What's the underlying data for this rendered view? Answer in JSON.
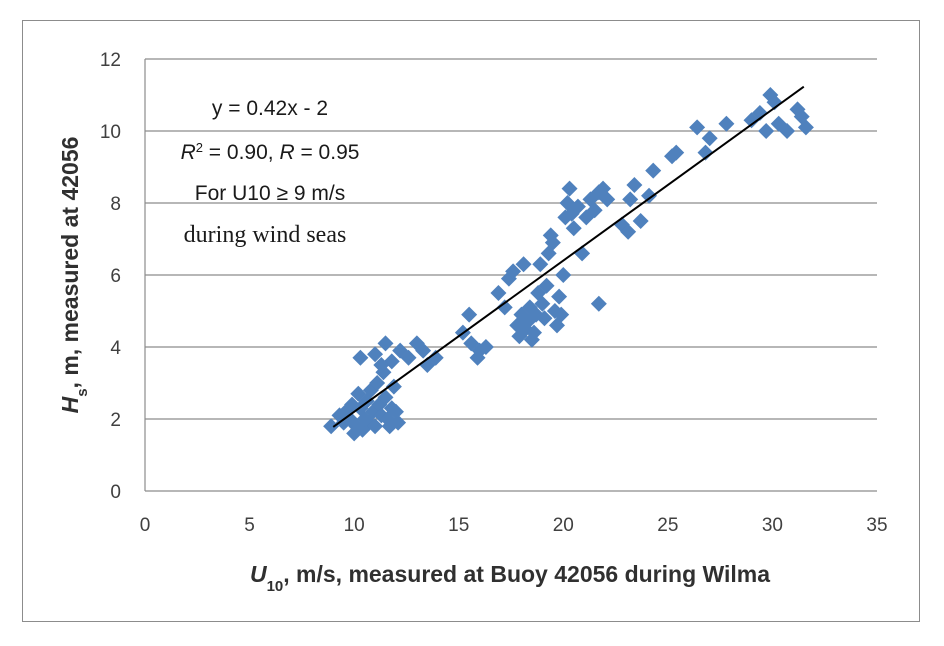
{
  "chart_data": {
    "type": "scatter",
    "xlabel": {
      "var": "U",
      "sub": "10",
      "rest": ", m/s, measured at Buoy 42056 during Wilma"
    },
    "ylabel": {
      "var": "H",
      "sub": "s",
      "rest": ", m, measured at 42056"
    },
    "xlim": [
      0,
      35
    ],
    "ylim": [
      0,
      12
    ],
    "xticks": [
      "0",
      "5",
      "10",
      "15",
      "20",
      "25",
      "30",
      "35"
    ],
    "yticks": [
      "0",
      "2",
      "4",
      "6",
      "8",
      "10",
      "12"
    ],
    "grid": "horizontal",
    "marker_color": "#4f81bd",
    "line_color": "#000000",
    "trendline": {
      "slope": 0.42,
      "intercept": -2,
      "x_range": [
        9,
        31.5
      ]
    },
    "annotations": {
      "equation": "y = 0.42x - 2",
      "r2_label": "R",
      "r2_sup": "2",
      "r2_rest": " = 0.90, ",
      "r_label": "R",
      "r_rest": " = 0.95",
      "condition": "For U10 ≥ 9 m/s",
      "regime": "during wind seas"
    },
    "series": [
      {
        "points": [
          [
            8.9,
            1.8
          ],
          [
            9.3,
            2.1
          ],
          [
            9.5,
            1.9
          ],
          [
            9.6,
            2.2
          ],
          [
            9.8,
            2.0
          ],
          [
            9.9,
            2.4
          ],
          [
            10.0,
            1.6
          ],
          [
            10.1,
            1.8
          ],
          [
            10.2,
            2.7
          ],
          [
            10.3,
            2.3
          ],
          [
            10.4,
            1.7
          ],
          [
            10.5,
            2.0
          ],
          [
            10.6,
            2.5
          ],
          [
            10.7,
            1.9
          ],
          [
            10.8,
            2.8
          ],
          [
            10.9,
            2.2
          ],
          [
            11.0,
            1.8
          ],
          [
            11.1,
            3.0
          ],
          [
            11.2,
            2.4
          ],
          [
            11.3,
            2.1
          ],
          [
            11.4,
            3.3
          ],
          [
            11.5,
            2.6
          ],
          [
            11.6,
            2.0
          ],
          [
            11.7,
            1.8
          ],
          [
            11.8,
            2.3
          ],
          [
            11.9,
            2.9
          ],
          [
            12.0,
            2.2
          ],
          [
            12.1,
            1.9
          ],
          [
            10.3,
            3.7
          ],
          [
            11.0,
            3.8
          ],
          [
            11.5,
            4.1
          ],
          [
            11.8,
            3.6
          ],
          [
            11.3,
            3.5
          ],
          [
            12.2,
            3.9
          ],
          [
            12.6,
            3.7
          ],
          [
            13.0,
            4.1
          ],
          [
            13.3,
            3.9
          ],
          [
            13.5,
            3.5
          ],
          [
            13.9,
            3.7
          ],
          [
            15.2,
            4.4
          ],
          [
            15.5,
            4.9
          ],
          [
            15.6,
            4.1
          ],
          [
            15.9,
            3.7
          ],
          [
            16.0,
            3.9
          ],
          [
            16.3,
            4.0
          ],
          [
            16.9,
            5.5
          ],
          [
            17.2,
            5.1
          ],
          [
            17.4,
            5.9
          ],
          [
            17.6,
            6.1
          ],
          [
            17.8,
            4.6
          ],
          [
            17.9,
            4.3
          ],
          [
            18.0,
            4.9
          ],
          [
            18.1,
            6.3
          ],
          [
            18.2,
            4.5
          ],
          [
            18.3,
            4.7
          ],
          [
            18.4,
            5.1
          ],
          [
            18.5,
            4.2
          ],
          [
            18.6,
            4.4
          ],
          [
            18.7,
            4.9
          ],
          [
            18.8,
            5.5
          ],
          [
            18.9,
            6.3
          ],
          [
            19.0,
            5.2
          ],
          [
            19.1,
            4.8
          ],
          [
            19.2,
            5.7
          ],
          [
            19.3,
            6.6
          ],
          [
            19.4,
            7.1
          ],
          [
            19.5,
            6.9
          ],
          [
            19.6,
            5.0
          ],
          [
            19.7,
            4.6
          ],
          [
            19.8,
            5.4
          ],
          [
            19.9,
            4.9
          ],
          [
            20.0,
            6.0
          ],
          [
            20.1,
            7.6
          ],
          [
            20.2,
            8.0
          ],
          [
            20.3,
            8.4
          ],
          [
            20.4,
            7.7
          ],
          [
            20.5,
            7.3
          ],
          [
            20.7,
            7.9
          ],
          [
            20.9,
            6.6
          ],
          [
            21.1,
            7.6
          ],
          [
            21.3,
            8.1
          ],
          [
            21.5,
            7.8
          ],
          [
            21.7,
            8.3
          ],
          [
            21.9,
            8.4
          ],
          [
            22.1,
            8.1
          ],
          [
            21.7,
            5.2
          ],
          [
            22.8,
            7.4
          ],
          [
            23.1,
            7.2
          ],
          [
            23.2,
            8.1
          ],
          [
            23.4,
            8.5
          ],
          [
            23.7,
            7.5
          ],
          [
            24.1,
            8.2
          ],
          [
            24.3,
            8.9
          ],
          [
            25.2,
            9.3
          ],
          [
            25.4,
            9.4
          ],
          [
            26.4,
            10.1
          ],
          [
            26.8,
            9.4
          ],
          [
            27.0,
            9.8
          ],
          [
            27.8,
            10.2
          ],
          [
            29.0,
            10.3
          ],
          [
            29.4,
            10.5
          ],
          [
            29.7,
            10.0
          ],
          [
            29.9,
            11.0
          ],
          [
            30.1,
            10.8
          ],
          [
            30.3,
            10.2
          ],
          [
            30.7,
            10.0
          ],
          [
            31.2,
            10.6
          ],
          [
            31.4,
            10.4
          ],
          [
            31.6,
            10.1
          ]
        ]
      }
    ]
  }
}
